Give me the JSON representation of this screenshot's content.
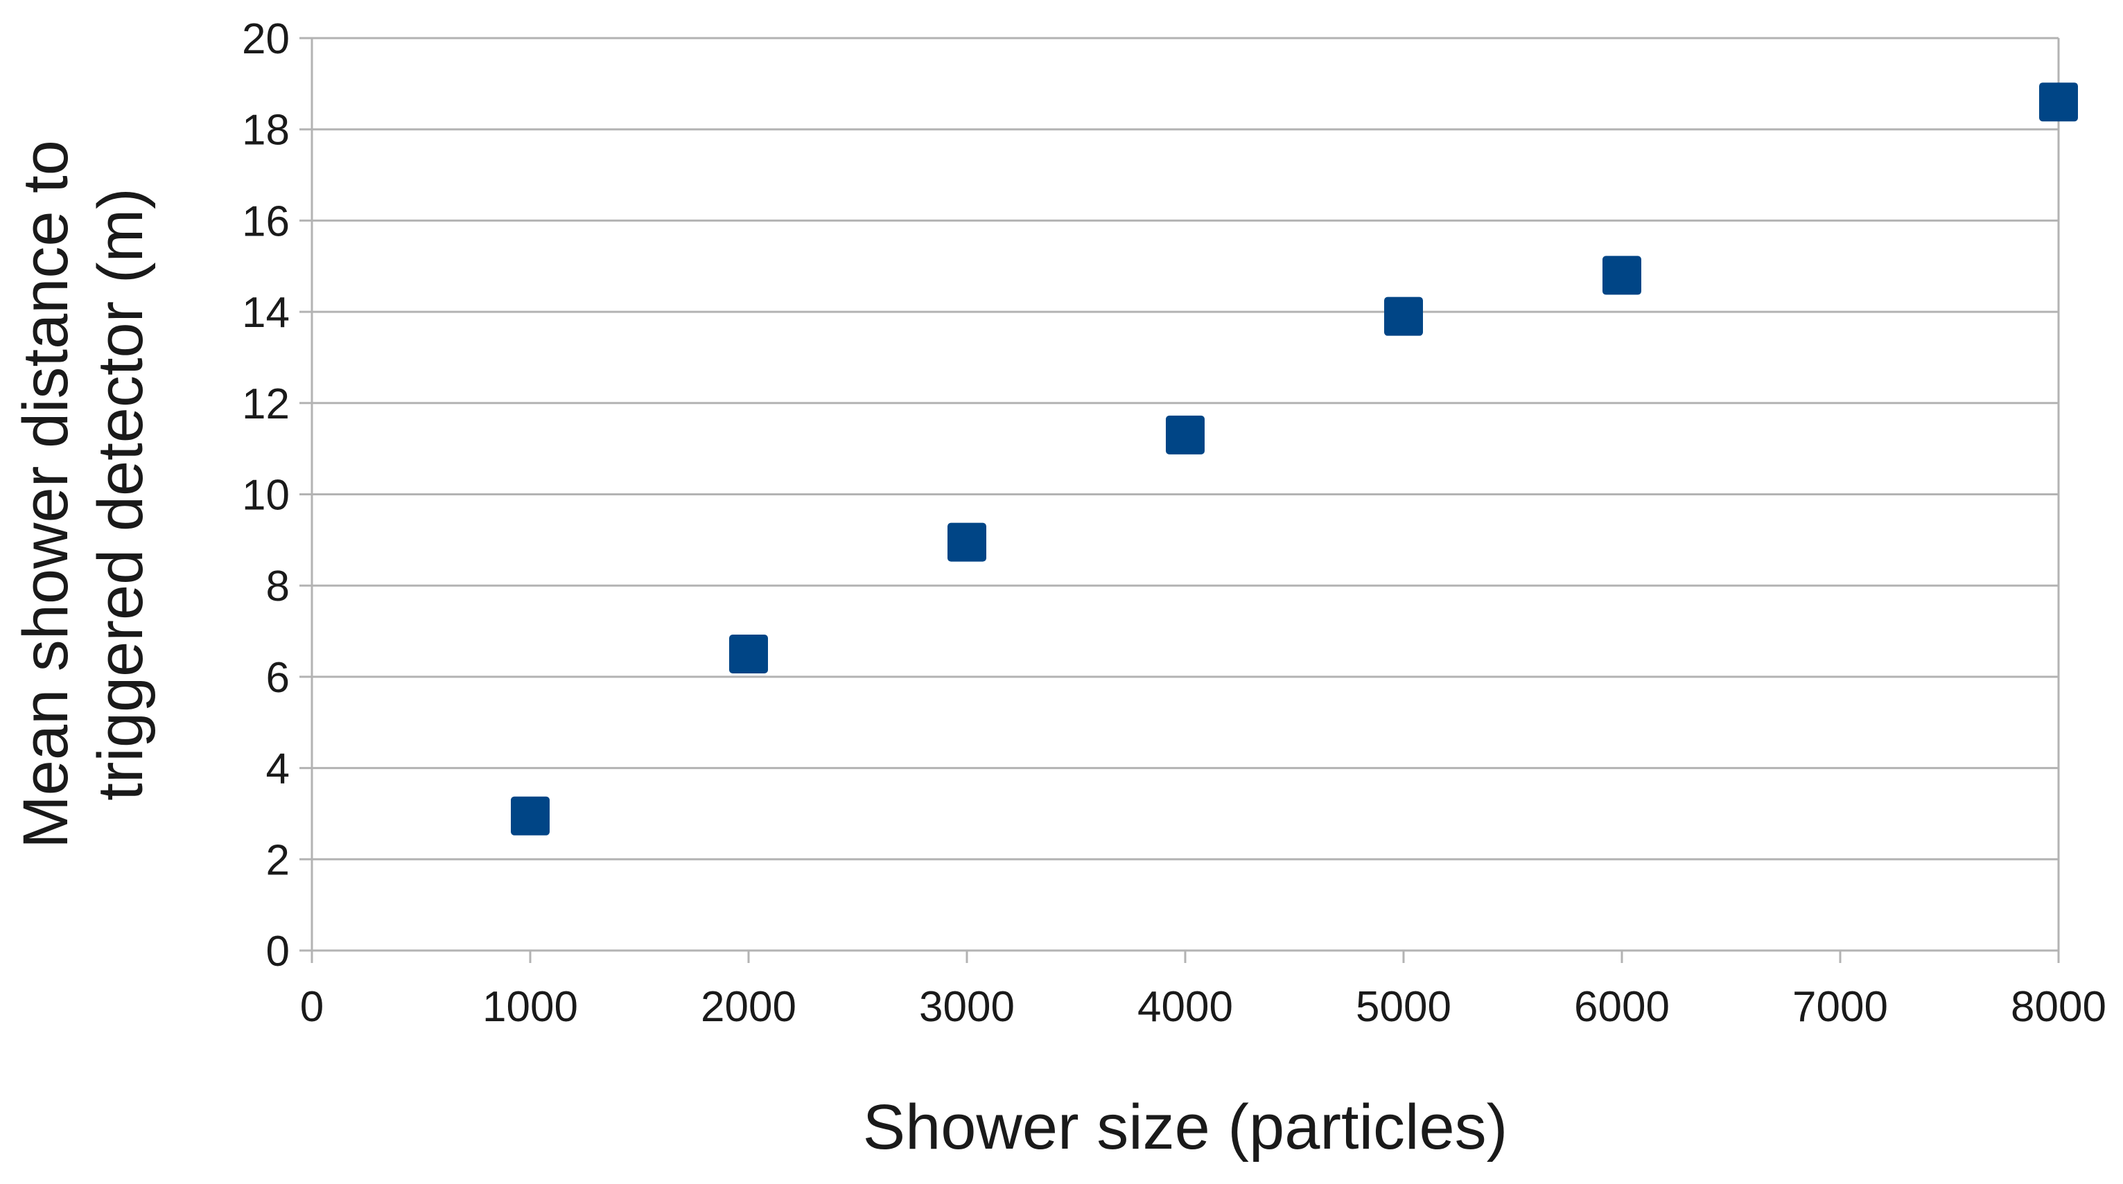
{
  "chart_data": {
    "type": "scatter",
    "xlabel": "Shower size (particles)",
    "ylabel_lines": [
      "Mean shower distance to",
      "triggered detector (m)"
    ],
    "xlim": [
      0,
      8000
    ],
    "ylim": [
      0,
      20
    ],
    "x_ticks": [
      0,
      1000,
      2000,
      3000,
      4000,
      5000,
      6000,
      7000,
      8000
    ],
    "y_ticks": [
      0,
      2,
      4,
      6,
      8,
      10,
      12,
      14,
      16,
      18,
      20
    ],
    "grid": "horizontal",
    "legend": "none",
    "marker": "square",
    "marker_color": "#004586",
    "x": [
      1000,
      2000,
      3000,
      4000,
      5000,
      6000,
      8000
    ],
    "y": [
      2.95,
      6.5,
      8.95,
      11.3,
      13.9,
      14.8,
      18.6
    ]
  }
}
